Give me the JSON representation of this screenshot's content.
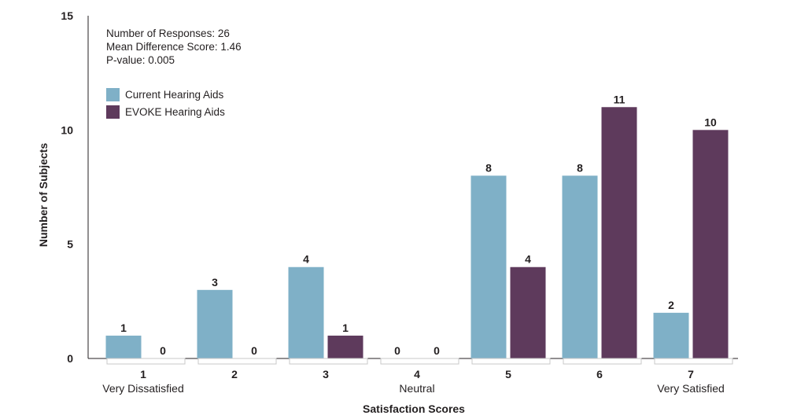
{
  "chart_data": {
    "type": "bar",
    "categories": [
      "1",
      "2",
      "3",
      "4",
      "5",
      "6",
      "7"
    ],
    "category_sublabels": [
      "Very Dissatisfied",
      "",
      "",
      "Neutral",
      "",
      "",
      "Very Satisfied"
    ],
    "series": [
      {
        "name": "Current Hearing Aids",
        "values": [
          1,
          3,
          4,
          0,
          8,
          8,
          2
        ],
        "color": "#7fb0c7"
      },
      {
        "name": "EVOKE Hearing Aids",
        "values": [
          0,
          0,
          1,
          0,
          4,
          11,
          10
        ],
        "color": "#5e3a5c"
      }
    ],
    "xlabel": "Satisfaction Scores",
    "ylabel": "Number of Subjects",
    "ylim": [
      0,
      15
    ],
    "yticks": [
      0,
      5,
      10,
      15
    ],
    "grid": false,
    "legend_position": "top-left",
    "annotations": [
      "Number of Responses: 26",
      "Mean Difference Score: 1.46",
      "P-value: 0.005"
    ]
  }
}
